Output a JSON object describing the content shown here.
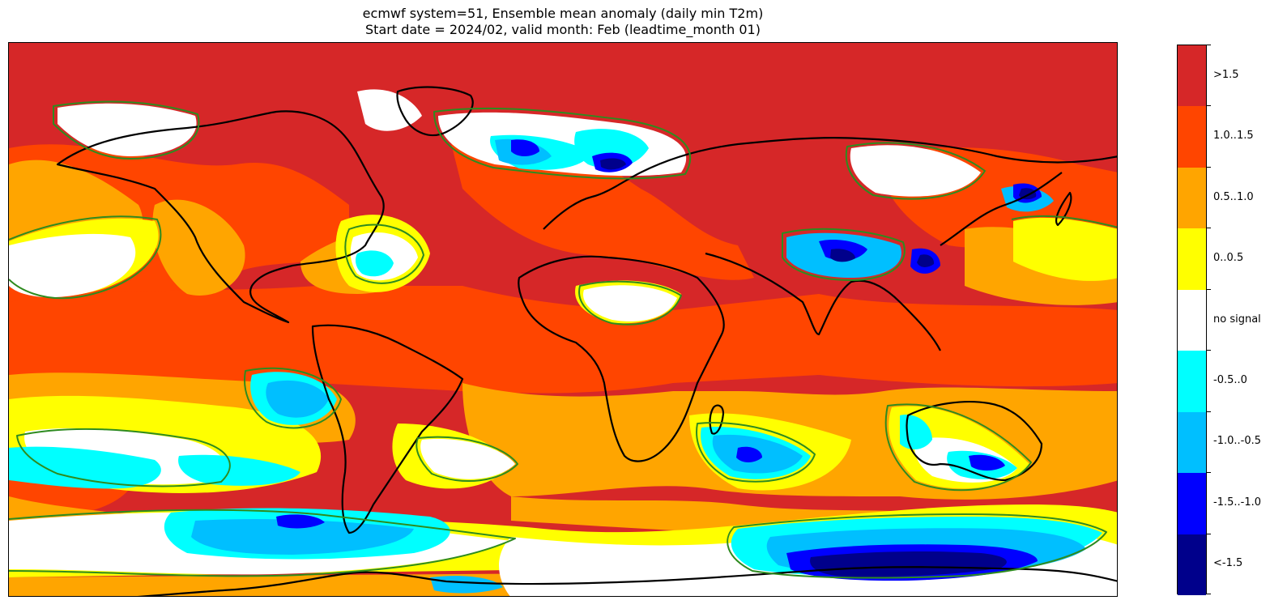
{
  "title": {
    "line1": "ecmwf system=51, Ensemble mean anomaly (daily min T2m)",
    "line2": "Start date = 2024/02, valid month: Feb (leadtime_month 01)"
  },
  "map": {
    "projection": "plate-carree",
    "variable": "daily min T2m",
    "statistic": "Ensemble mean anomaly",
    "contour_color": "#2e8b1f",
    "coastline_color": "#000000"
  },
  "legend": {
    "categories": [
      {
        "label": ">1.5",
        "color": "#d62728"
      },
      {
        "label": "1.0..1.5",
        "color": "#ff4500"
      },
      {
        "label": "0.5..1.0",
        "color": "#ffa500"
      },
      {
        "label": "0..0.5",
        "color": "#ffff00"
      },
      {
        "label": "no signal",
        "color": "#ffffff"
      },
      {
        "label": "-0.5..0",
        "color": "#00ffff"
      },
      {
        "label": "-1.0..-0.5",
        "color": "#00bfff"
      },
      {
        "label": "-1.5..-1.0",
        "color": "#0000ff"
      },
      {
        "label": "<-1.5",
        "color": "#00008b"
      }
    ]
  }
}
